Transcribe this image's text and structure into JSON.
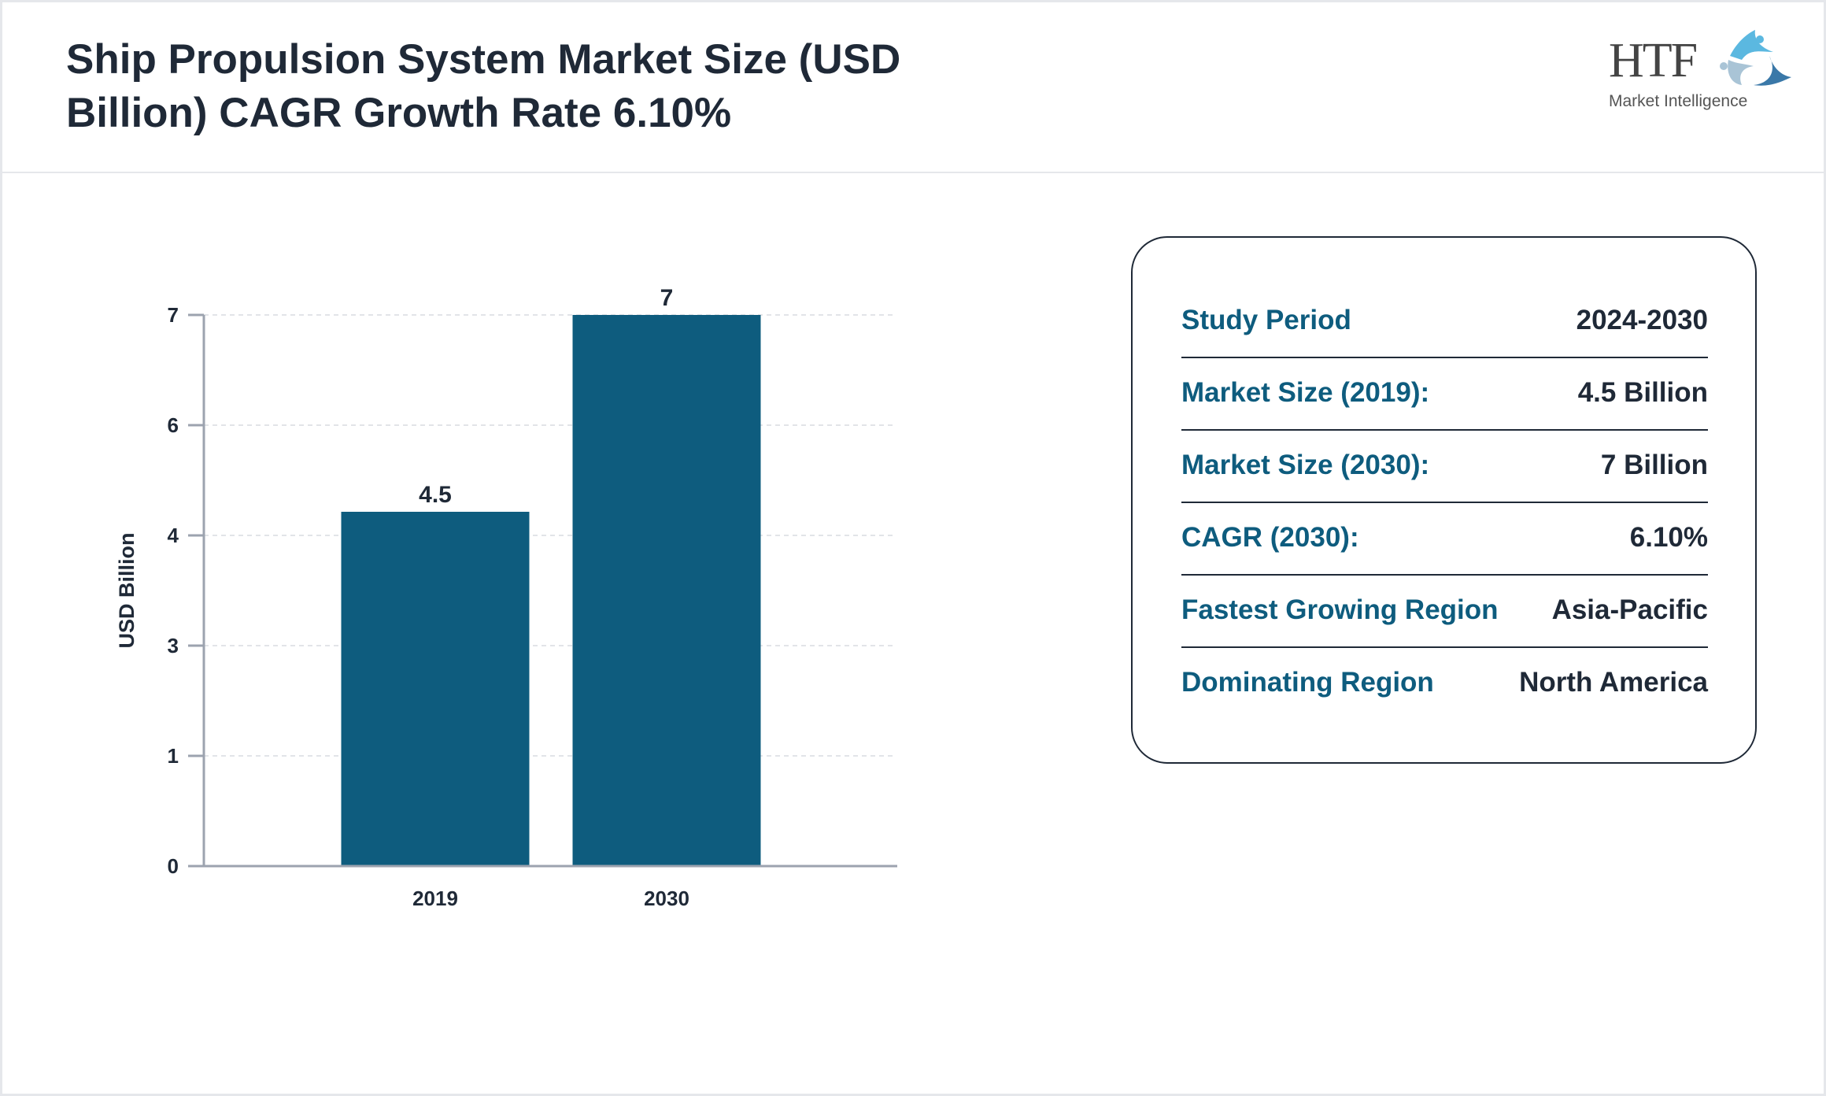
{
  "header": {
    "title_line1": "Ship Propulsion System Market Size (USD",
    "title_line2": "Billion) CAGR Growth Rate 6.10%"
  },
  "logo": {
    "text": "HTF",
    "subtext": "Market Intelligence",
    "colors": [
      "#5bb8e0",
      "#a9c4d6",
      "#3a78a8"
    ]
  },
  "chart_data": {
    "type": "bar",
    "categories": [
      "2019",
      "2030"
    ],
    "values": [
      4.5,
      7
    ],
    "data_labels": [
      "4.5",
      "7"
    ],
    "ylabel": "USD Billion",
    "xlabel": "",
    "ylim": [
      0,
      7
    ],
    "yticks": [
      0,
      1.4,
      2.8,
      4.2,
      5.6,
      7
    ],
    "ytick_labels": [
      "0",
      "1",
      "3",
      "4",
      "6",
      "7"
    ],
    "grid": true,
    "bar_color": "#0e5c7e"
  },
  "summary": {
    "rows": [
      {
        "label": "Study Period",
        "value": "2024-2030"
      },
      {
        "label": "Market Size (2019):",
        "value": "4.5 Billion"
      },
      {
        "label": "Market Size (2030):",
        "value": "7 Billion"
      },
      {
        "label": "CAGR (2030):",
        "value": "6.10%"
      },
      {
        "label": "Fastest Growing Region",
        "value": "Asia-Pacific"
      },
      {
        "label": "Dominating Region",
        "value": "North America"
      }
    ]
  }
}
